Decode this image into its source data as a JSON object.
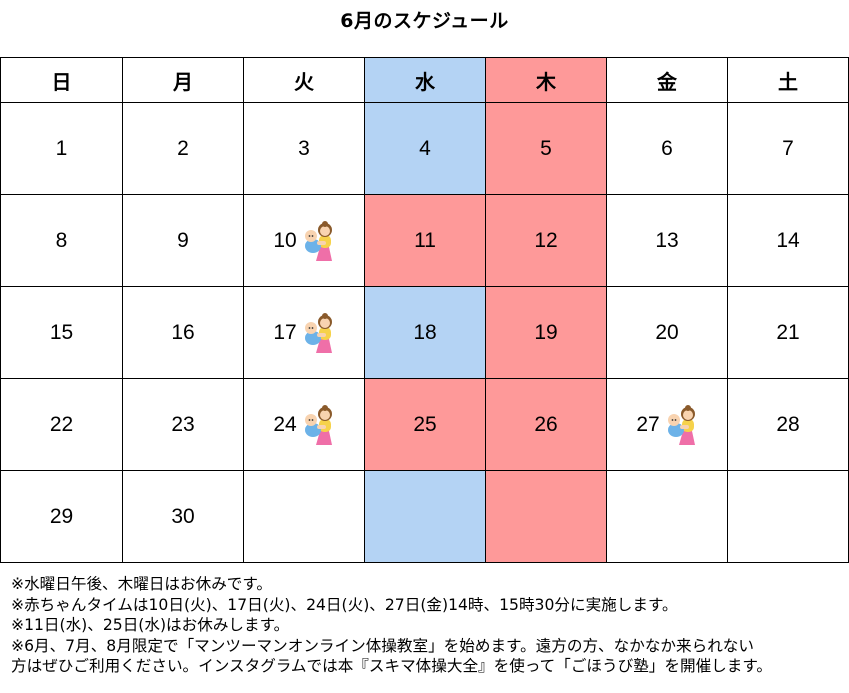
{
  "title": "6月のスケジュール",
  "weekdays": [
    "日",
    "月",
    "火",
    "水",
    "木",
    "金",
    "土"
  ],
  "weeks": [
    [
      "1",
      "2",
      "3",
      "4",
      "5",
      "6",
      "7"
    ],
    [
      "8",
      "9",
      "10",
      "11",
      "12",
      "13",
      "14"
    ],
    [
      "15",
      "16",
      "17",
      "18",
      "19",
      "20",
      "21"
    ],
    [
      "22",
      "23",
      "24",
      "25",
      "26",
      "27",
      "28"
    ],
    [
      "29",
      "30",
      "",
      "",
      "",
      "",
      ""
    ]
  ],
  "colors": {
    "wednesday": "#b4d3f4",
    "thursday_and_closed": "#fe9999"
  },
  "baby_time_icon": "mother-and-baby-icon",
  "notes": [
    "※水曜日午後、木曜日はお休みです。",
    "※赤ちゃんタイムは10日(火)、17日(火)、24日(火)、27日(金)14時、15時30分に実施します。",
    "※11日(水)、25日(水)はお休みします。",
    "※6月、7月、8月限定で「マンツーマンオンライン体操教室」を始めます。遠方の方、なかなか来られない",
    "方はぜひご利用ください。インスタグラムでは本『スキマ体操大全』を使って「ごほうび塾」を開催します。"
  ]
}
